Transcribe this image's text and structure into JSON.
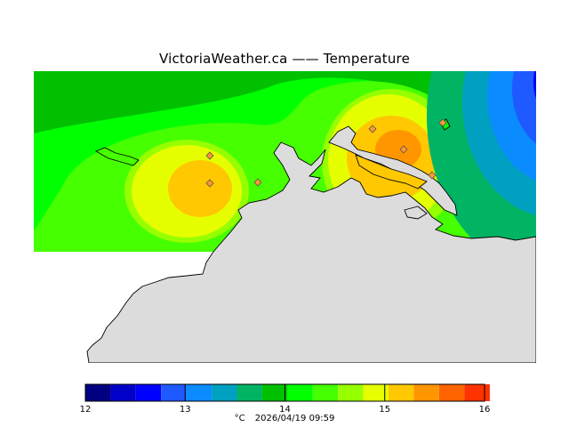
{
  "title": "VictoriaWeather.ca  —— Temperature",
  "colorbar": {
    "min": 12,
    "max": 16,
    "tick_labels": [
      "12",
      "13",
      "14",
      "15",
      "16"
    ],
    "colors": [
      "#000080",
      "#0000c8",
      "#0000ff",
      "#1e5aff",
      "#0a8cff",
      "#00a0c0",
      "#00b464",
      "#00c000",
      "#00ff00",
      "#46ff00",
      "#96ff00",
      "#e6ff00",
      "#ffc800",
      "#ff9600",
      "#ff6400",
      "#ff3200",
      "#ff0000"
    ]
  },
  "footer": {
    "unit": "°C",
    "timestamp": "2026/04/19 09:59"
  },
  "map": {
    "land_color": "#dcdcdc",
    "coast_color": "#000000",
    "station_markers": 7
  },
  "chart_data": {
    "type": "heatmap",
    "title": "VictoriaWeather.ca  —— Temperature",
    "variable": "Temperature",
    "unit": "°C",
    "scale_range": [
      12,
      16
    ],
    "hot_spots_celsius": [
      14.8,
      15.3
    ],
    "timestamp": "2026/04/19 09:59"
  }
}
